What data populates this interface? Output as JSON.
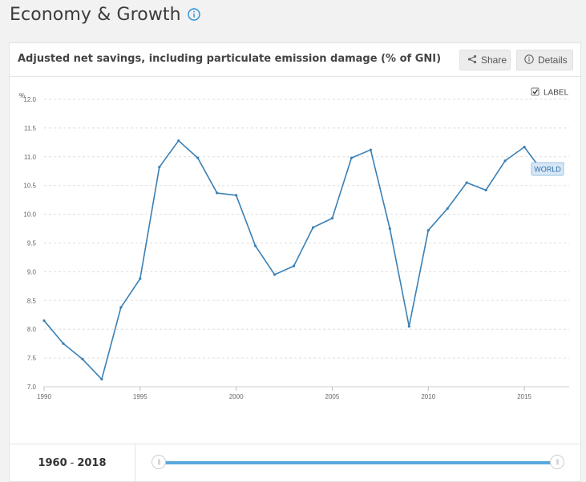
{
  "page": {
    "title": "Economy & Growth",
    "info_icon": "info-circle-icon"
  },
  "card": {
    "title": "Adjusted net savings, including particulate emission damage (% of GNI)",
    "share_label": "Share",
    "share_icon": "share-icon",
    "details_label": "Details",
    "details_icon": "info-circle-icon",
    "label_toggle": "LABEL",
    "label_checked": true
  },
  "range": {
    "start": "1960",
    "sep": "-",
    "end": "2018"
  },
  "colors": {
    "line": "#3a80b5",
    "label_bg": "#d7e7f5",
    "grid": "#dddddd",
    "slider": "#5aa9dc"
  },
  "chart_data": {
    "type": "line",
    "ylabel": "%",
    "ylim": [
      7.0,
      12.0
    ],
    "yticks": [
      "12.0",
      "11.5",
      "11.0",
      "10.5",
      "10.0",
      "9.5",
      "9.0",
      "8.5",
      "8.0",
      "7.5",
      "7.0"
    ],
    "xlim": [
      1990,
      2017
    ],
    "xticks": [
      "1990",
      "1995",
      "2000",
      "2005",
      "2010",
      "2015"
    ],
    "grid": true,
    "series": [
      {
        "name": "WORLD",
        "x": [
          1990,
          1991,
          1992,
          1993,
          1994,
          1995,
          1996,
          1997,
          1998,
          1999,
          2000,
          2001,
          2002,
          2003,
          2004,
          2005,
          2006,
          2007,
          2008,
          2009,
          2010,
          2011,
          2012,
          2013,
          2014,
          2015,
          2016,
          2017
        ],
        "y": [
          8.15,
          7.75,
          7.48,
          7.13,
          8.38,
          8.88,
          10.82,
          11.28,
          10.98,
          10.37,
          10.33,
          9.45,
          8.95,
          9.1,
          9.77,
          9.93,
          10.98,
          11.12,
          9.75,
          8.05,
          9.72,
          10.1,
          10.55,
          10.42,
          10.93,
          11.17,
          10.72,
          10.88
        ]
      }
    ]
  }
}
